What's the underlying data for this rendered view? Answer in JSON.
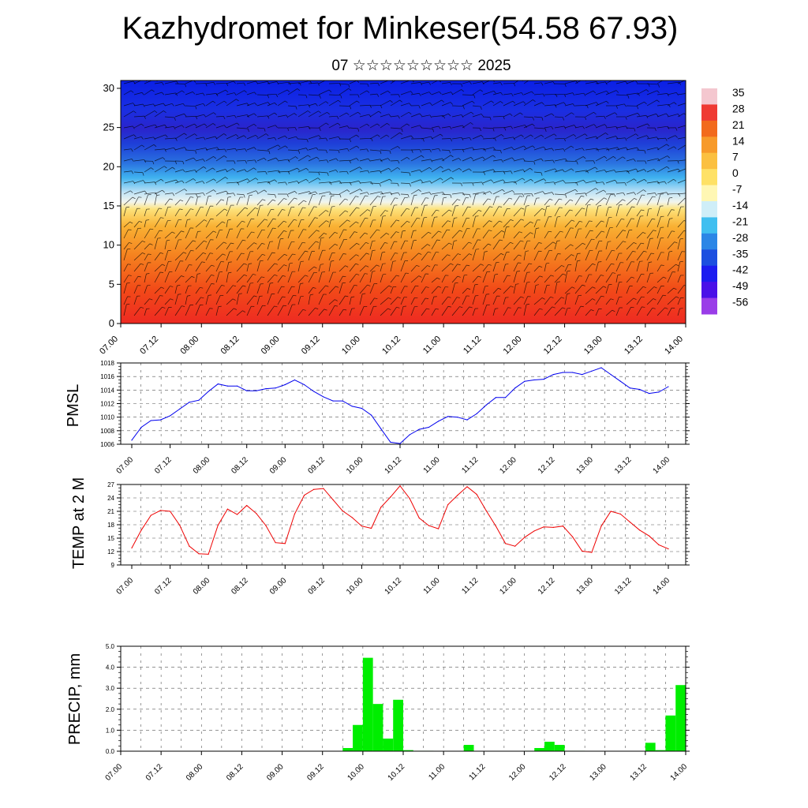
{
  "title": "Kazhydromet for Minkeser(54.58 67.93)",
  "subtitle": "07 ☆☆☆☆☆☆☆☆☆ 2025",
  "chart_data": [
    {
      "type": "heatmap",
      "name": "vertical-section",
      "x_tick_labels": [
        "07.00",
        "07.12",
        "08.00",
        "08.12",
        "09.00",
        "09.12",
        "10.00",
        "10.12",
        "11.00",
        "11.12",
        "12.00",
        "12.12",
        "13.00",
        "13.12",
        "14.00"
      ],
      "y_ticks": [
        0,
        5,
        10,
        15,
        20,
        25,
        30
      ],
      "ylim": [
        0,
        31
      ],
      "colorbar_labels": [
        "35",
        "28",
        "21",
        "14",
        "7",
        "0",
        "-7",
        "-14",
        "-21",
        "-28",
        "-35",
        "-42",
        "-49",
        "-56"
      ],
      "colorbar_colors": [
        "#f4c7cf",
        "#ef3a33",
        "#f26a1c",
        "#f79a2a",
        "#fbc040",
        "#fee166",
        "#fff7b4",
        "#cfeef8",
        "#40bff0",
        "#2b86e6",
        "#1c4fe0",
        "#1c1cf0",
        "#4a10e8",
        "#9a3de8"
      ],
      "grid": false,
      "overlay": "wind-barbs"
    },
    {
      "type": "line",
      "name": "pmsl",
      "ylabel": "PMSL",
      "color": "#0000ee",
      "ylim": [
        1006,
        1018
      ],
      "y_ticks": [
        "1006",
        "1008",
        "1010",
        "1012",
        "1014",
        "1016",
        "1018"
      ],
      "x_tick_labels": [
        "07.00",
        "07.12",
        "08.00",
        "08.12",
        "09.00",
        "09.12",
        "10.00",
        "10.12",
        "11.00",
        "11.12",
        "12.00",
        "12.12",
        "13.00",
        "13.12",
        "14.00"
      ],
      "x": [
        0,
        3,
        6,
        9,
        12,
        15,
        18,
        21,
        24,
        27,
        30,
        33,
        36,
        39,
        42,
        45,
        48,
        51,
        54,
        57,
        60,
        63,
        66,
        69,
        72,
        75,
        78,
        81,
        84,
        87,
        90,
        93,
        96,
        99,
        102,
        105,
        108,
        111,
        114,
        117,
        120,
        123,
        126,
        129,
        132,
        135,
        138,
        141,
        144,
        147,
        150,
        153,
        156,
        159,
        162,
        165,
        168
      ],
      "values": [
        1006.6,
        1008.5,
        1009.5,
        1009.6,
        1010.2,
        1011.2,
        1012.2,
        1012.5,
        1013.8,
        1014.9,
        1014.6,
        1014.6,
        1013.9,
        1013.9,
        1014.2,
        1014.3,
        1014.8,
        1015.5,
        1014.8,
        1013.8,
        1013,
        1012.4,
        1012.4,
        1011.6,
        1011.3,
        1010.3,
        1008.3,
        1006.3,
        1006.1,
        1007.4,
        1008.2,
        1008.5,
        1009.4,
        1010.1,
        1010,
        1009.6,
        1010.5,
        1011.8,
        1012.9,
        1012.9,
        1014.3,
        1015.3,
        1015.5,
        1015.6,
        1016.3,
        1016.6,
        1016.6,
        1016.3,
        1016.8,
        1017.3,
        1016.3,
        1015.3,
        1014.3,
        1014.1,
        1013.5,
        1013.7,
        1014.5
      ],
      "grid": true
    },
    {
      "type": "line",
      "name": "temp2m",
      "ylabel": "TEMP at 2 M",
      "color": "#ee0000",
      "ylim": [
        9,
        27
      ],
      "y_ticks": [
        "9",
        "12",
        "15",
        "18",
        "21",
        "24",
        "27"
      ],
      "x_tick_labels": [
        "07.00",
        "07.12",
        "08.00",
        "08.12",
        "09.00",
        "09.12",
        "10.00",
        "10.12",
        "11.00",
        "11.12",
        "12.00",
        "12.12",
        "13.00",
        "13.12",
        "14.00"
      ],
      "x": [
        0,
        3,
        6,
        9,
        12,
        15,
        18,
        21,
        24,
        27,
        30,
        33,
        36,
        39,
        42,
        45,
        48,
        51,
        54,
        57,
        60,
        63,
        66,
        69,
        72,
        75,
        78,
        81,
        84,
        87,
        90,
        93,
        96,
        99,
        102,
        105,
        108,
        111,
        114,
        117,
        120,
        123,
        126,
        129,
        132,
        135,
        138,
        141,
        144,
        147,
        150,
        153,
        156,
        159,
        162,
        165,
        168
      ],
      "values": [
        12.8,
        16.8,
        20.1,
        21.2,
        21,
        17.9,
        13.2,
        11.5,
        11.4,
        17.9,
        21.5,
        20.3,
        22.3,
        20.5,
        17.8,
        14,
        13.8,
        20.4,
        24.6,
        25.9,
        26.1,
        23.6,
        21.1,
        19.6,
        17.7,
        17.2,
        21.9,
        24.2,
        26.7,
        23.9,
        19.5,
        17.8,
        17.1,
        22.5,
        24.6,
        26.5,
        24.8,
        21.1,
        17.7,
        13.8,
        13.2,
        15.2,
        16.6,
        17.5,
        17.4,
        17.7,
        15.3,
        12.1,
        11.8,
        17.7,
        21,
        20.4,
        18.6,
        16.8,
        15.5,
        13.5,
        12.6
      ],
      "grid": true
    },
    {
      "type": "bar",
      "name": "precip",
      "ylabel": "PRECIP, mm",
      "color": "#00ee00",
      "ylim": [
        0,
        5
      ],
      "y_ticks": [
        "0.0",
        "1.0",
        "2.0",
        "3.0",
        "4.0",
        "5.0"
      ],
      "x_tick_labels": [
        "07.00",
        "07.12",
        "08.00",
        "08.12",
        "09.00",
        "09.12",
        "10.00",
        "10.12",
        "11.00",
        "11.12",
        "12.00",
        "12.12",
        "13.00",
        "13.12",
        "14.00"
      ],
      "x": [
        66,
        69,
        72,
        75,
        78,
        81,
        84,
        87,
        90,
        102,
        120,
        123,
        126,
        129,
        132,
        135,
        156,
        159,
        162,
        165
      ],
      "values": [
        0.15,
        1.25,
        4.45,
        2.25,
        0.6,
        2.45,
        0.05,
        0.02,
        0.02,
        0.3,
        0.02,
        0.15,
        0.45,
        0.3,
        0.02,
        0.02,
        0.4,
        0.05,
        1.7,
        3.15
      ],
      "grid": true
    }
  ]
}
